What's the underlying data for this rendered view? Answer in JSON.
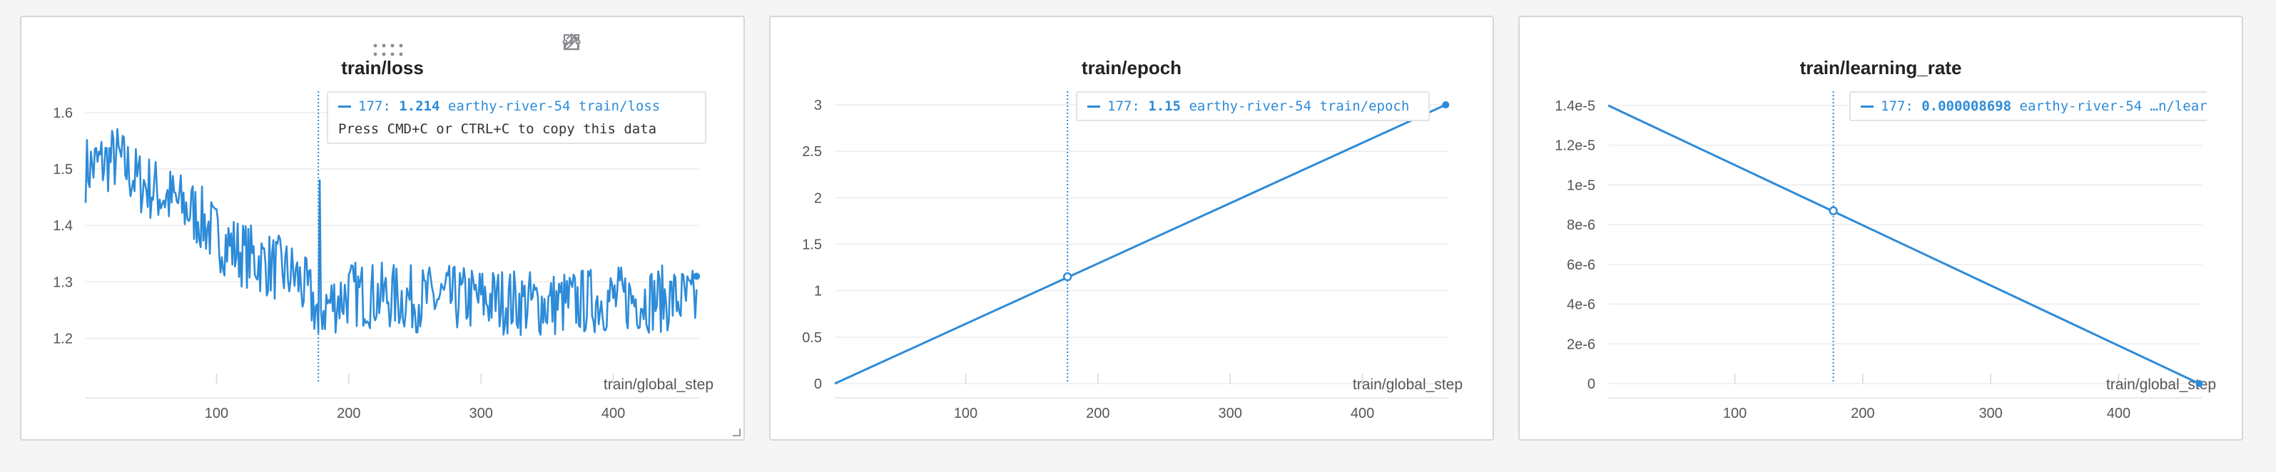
{
  "panels": [
    {
      "title": "train/loss",
      "tooltip": {
        "step": "177:",
        "value": "1.214",
        "series": "earthy-river-54 train/loss",
        "hint": "Press CMD+C or CTRL+C to copy this data"
      }
    },
    {
      "title": "train/epoch",
      "tooltip": {
        "step": "177:",
        "value": "1.15",
        "series": "earthy-river-54 train/epoch"
      }
    },
    {
      "title": "train/learning_rate",
      "tooltip": {
        "step": "177:",
        "value": "0.000008698",
        "series": "earthy-river-54 …n/learning_rate"
      }
    }
  ],
  "toolbar_icons": [
    "drag-handle-icon",
    "share-icon",
    "edit-icon",
    "fullscreen-icon",
    "more-icon"
  ],
  "chart_data": [
    {
      "type": "line",
      "title": "train/loss",
      "xlabel": "train/global_step",
      "xlim": [
        1,
        465
      ],
      "ylim": [
        1.12,
        1.63
      ],
      "xticks": [
        100,
        200,
        300,
        400
      ],
      "yticks": [
        1.2,
        1.3,
        1.4,
        1.5,
        1.6
      ],
      "ytick_labels": [
        "1.2",
        "1.3",
        "1.4",
        "1.5",
        "1.6"
      ],
      "grid": true,
      "hover_step": 177,
      "series": [
        {
          "name": "earthy-river-54 train/loss",
          "color": "#2d8bd8",
          "noisy": true,
          "anchors": [
            [
              1,
              1.5
            ],
            [
              25,
              1.52
            ],
            [
              40,
              1.48
            ],
            [
              55,
              1.46
            ],
            [
              70,
              1.44
            ],
            [
              85,
              1.42
            ],
            [
              100,
              1.38
            ],
            [
              120,
              1.35
            ],
            [
              140,
              1.33
            ],
            [
              160,
              1.31
            ],
            [
              177,
              1.25
            ],
            [
              200,
              1.28
            ],
            [
              250,
              1.27
            ],
            [
              300,
              1.27
            ],
            [
              350,
              1.26
            ],
            [
              400,
              1.27
            ],
            [
              450,
              1.27
            ],
            [
              465,
              1.26
            ]
          ],
          "noise_amplitude": 0.06,
          "end_point": [
            463,
            1.31
          ]
        }
      ]
    },
    {
      "type": "line",
      "title": "train/epoch",
      "xlabel": "train/global_step",
      "xlim": [
        1,
        465
      ],
      "ylim": [
        0,
        3.1
      ],
      "xticks": [
        100,
        200,
        300,
        400
      ],
      "yticks": [
        0,
        0.5,
        1,
        1.5,
        2,
        2.5,
        3
      ],
      "ytick_labels": [
        "0",
        "0.5",
        "1",
        "1.5",
        "2",
        "2.5",
        "3"
      ],
      "grid": true,
      "hover_step": 177,
      "hover_value": 1.15,
      "series": [
        {
          "name": "earthy-river-54 train/epoch",
          "color": "#2d8bd8",
          "points": [
            [
              1,
              0.0
            ],
            [
              463,
              3.0
            ]
          ],
          "end_point": [
            463,
            3.0
          ]
        }
      ]
    },
    {
      "type": "line",
      "title": "train/learning_rate",
      "xlabel": "train/global_step",
      "xlim": [
        1,
        465
      ],
      "ylim": [
        0,
        1.45e-05
      ],
      "xticks": [
        100,
        200,
        300,
        400
      ],
      "yticks": [
        0,
        2e-06,
        4e-06,
        6e-06,
        8e-06,
        1e-05,
        1.2e-05,
        1.4e-05
      ],
      "ytick_labels": [
        "0",
        "2e-6",
        "4e-6",
        "6e-6",
        "8e-6",
        "1e-5",
        "1.2e-5",
        "1.4e-5"
      ],
      "grid": true,
      "hover_step": 177,
      "hover_value": 8.698e-06,
      "series": [
        {
          "name": "earthy-river-54 train/learning_rate",
          "color": "#2d8bd8",
          "points": [
            [
              1,
              1.4e-05
            ],
            [
              463,
              0.0
            ]
          ],
          "end_point": [
            463,
            0.0
          ]
        }
      ]
    }
  ]
}
